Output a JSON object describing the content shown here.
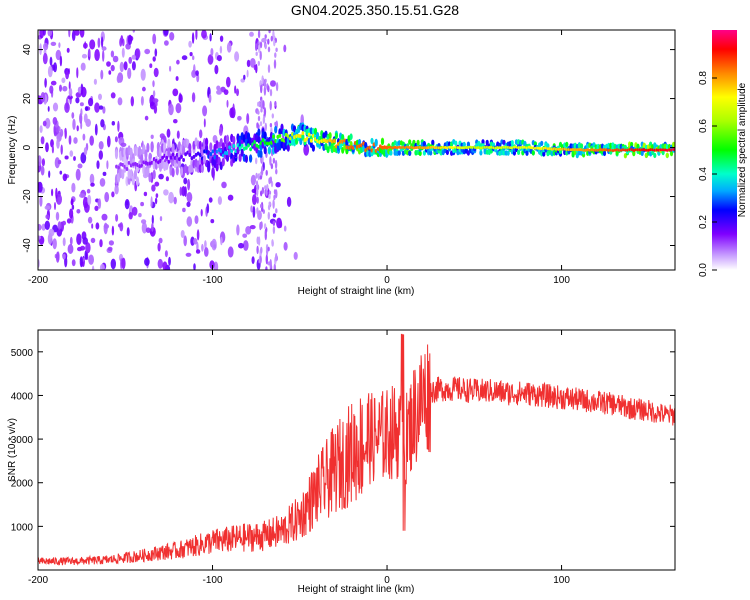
{
  "title": "GN04.2025.350.15.51.G28",
  "colors": {
    "snr_line": "#f03030",
    "spectrogram_scatter": "#8a2be2",
    "ridge_core": "#e8102a"
  },
  "chart_data": [
    {
      "type": "heatmap",
      "title": "GN04.2025.350.15.51.G28",
      "xlabel": "Height of straight line (km)",
      "ylabel": "Frequency (Hz)",
      "xlim": [
        -200,
        165
      ],
      "ylim": [
        -50,
        48
      ],
      "xticks": [
        -200,
        -100,
        0,
        100
      ],
      "yticks": [
        -40,
        -20,
        0,
        20,
        40
      ],
      "colorbar": {
        "label": "Normalized spectral amplitude",
        "range": [
          0,
          1
        ],
        "ticks": [
          "0.0",
          "0.2",
          "0.4",
          "0.6",
          "0.8"
        ],
        "colormap": "rainbow (white-purple-blue-cyan-green-yellow-orange-red-magenta)"
      },
      "ridge": {
        "x": [
          -150,
          -130,
          -110,
          -100,
          -90,
          -80,
          -70,
          -60,
          -50,
          -40,
          -30,
          -20,
          -10,
          0,
          20,
          50,
          80,
          110,
          140,
          165
        ],
        "frequency_hz": [
          -8,
          -5,
          -3,
          -3,
          -1,
          0,
          2,
          4,
          5,
          3,
          2,
          1,
          0,
          0,
          0,
          0,
          0,
          -1,
          -1,
          -1
        ],
        "amplitude": [
          0.12,
          0.15,
          0.18,
          0.3,
          0.35,
          0.45,
          0.5,
          0.55,
          0.75,
          0.7,
          0.8,
          0.85,
          0.85,
          0.85,
          0.8,
          0.65,
          0.7,
          0.8,
          0.9,
          0.95
        ]
      }
    },
    {
      "type": "line",
      "xlabel": "Height of straight line (km)",
      "ylabel": "SNR (10 * v/v)",
      "xlim": [
        -200,
        165
      ],
      "ylim": [
        0,
        5500
      ],
      "xticks": [
        -200,
        -100,
        0,
        100
      ],
      "yticks": [
        1000,
        2000,
        3000,
        4000,
        5000
      ],
      "series": [
        {
          "name": "SNR",
          "x": [
            -200,
            -180,
            -160,
            -150,
            -140,
            -130,
            -120,
            -110,
            -100,
            -90,
            -80,
            -70,
            -60,
            -50,
            -40,
            -30,
            -20,
            -10,
            0,
            5,
            10,
            15,
            20,
            25,
            30,
            40,
            50,
            60,
            70,
            80,
            90,
            100,
            110,
            120,
            130,
            140,
            150,
            160,
            165
          ],
          "y": [
            200,
            200,
            230,
            280,
            330,
            400,
            450,
            550,
            650,
            700,
            750,
            780,
            900,
            1200,
            1800,
            2300,
            2700,
            3000,
            3100,
            3200,
            2900,
            3500,
            3900,
            4100,
            4150,
            4150,
            4100,
            4100,
            4050,
            4050,
            4000,
            3950,
            3900,
            3850,
            3800,
            3700,
            3650,
            3550,
            3550
          ]
        }
      ]
    }
  ]
}
